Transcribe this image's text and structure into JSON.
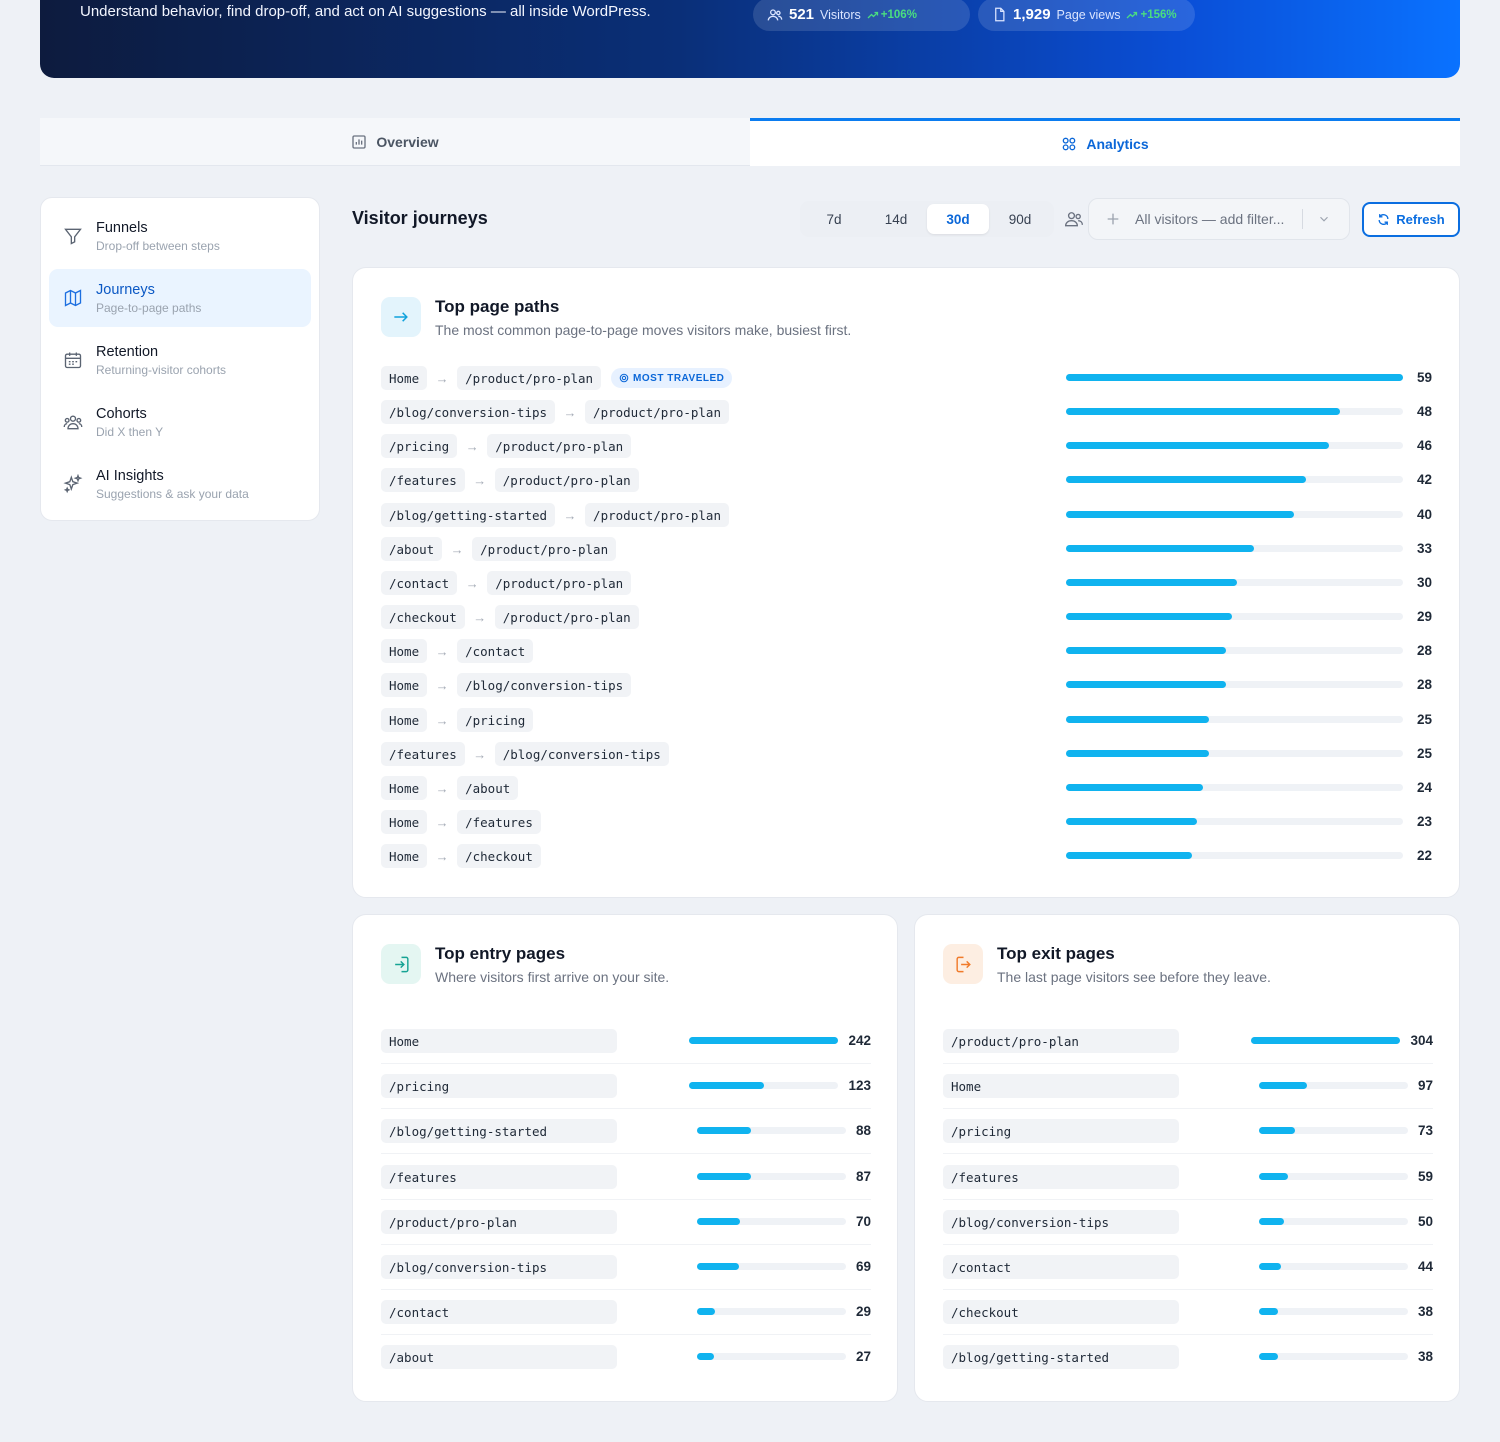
{
  "hero": {
    "subtitle": "Understand behavior, find drop-off, and act on AI suggestions — all inside WordPress.",
    "stats": [
      {
        "icon": "users-icon",
        "value": "521",
        "label": "Visitors",
        "delta": "+106%"
      },
      {
        "icon": "file-icon",
        "value": "1,929",
        "label": "Page views",
        "delta": "+156%"
      }
    ]
  },
  "tabs": [
    {
      "label": "Overview",
      "icon": "bar-chart-icon",
      "active": false
    },
    {
      "label": "Analytics",
      "icon": "grid-icon",
      "active": true
    }
  ],
  "sidebar": {
    "items": [
      {
        "title": "Funnels",
        "subtitle": "Drop-off between steps",
        "icon": "funnel-icon",
        "active": false
      },
      {
        "title": "Journeys",
        "subtitle": "Page-to-page paths",
        "icon": "map-icon",
        "active": true
      },
      {
        "title": "Retention",
        "subtitle": "Returning-visitor cohorts",
        "icon": "calendar-icon",
        "active": false
      },
      {
        "title": "Cohorts",
        "subtitle": "Did X then Y",
        "icon": "users-icon",
        "active": false
      },
      {
        "title": "AI Insights",
        "subtitle": "Suggestions & ask your data",
        "icon": "sparkles-icon",
        "active": false
      }
    ]
  },
  "header": {
    "title": "Visitor journeys",
    "ranges": [
      "7d",
      "14d",
      "30d",
      "90d"
    ],
    "active_range": "30d",
    "filter_placeholder": "All visitors — add filter...",
    "refresh_label": "Refresh"
  },
  "top_paths": {
    "title": "Top page paths",
    "description": "The most common page-to-page moves visitors make, busiest first.",
    "badge": "MOST TRAVELED",
    "max": 59,
    "rows": [
      {
        "from": "Home",
        "to": "/product/pro-plan",
        "count": 59
      },
      {
        "from": "/blog/conversion-tips",
        "to": "/product/pro-plan",
        "count": 48
      },
      {
        "from": "/pricing",
        "to": "/product/pro-plan",
        "count": 46
      },
      {
        "from": "/features",
        "to": "/product/pro-plan",
        "count": 42
      },
      {
        "from": "/blog/getting-started",
        "to": "/product/pro-plan",
        "count": 40
      },
      {
        "from": "/about",
        "to": "/product/pro-plan",
        "count": 33
      },
      {
        "from": "/contact",
        "to": "/product/pro-plan",
        "count": 30
      },
      {
        "from": "/checkout",
        "to": "/product/pro-plan",
        "count": 29
      },
      {
        "from": "Home",
        "to": "/contact",
        "count": 28
      },
      {
        "from": "Home",
        "to": "/blog/conversion-tips",
        "count": 28
      },
      {
        "from": "Home",
        "to": "/pricing",
        "count": 25
      },
      {
        "from": "/features",
        "to": "/blog/conversion-tips",
        "count": 25
      },
      {
        "from": "Home",
        "to": "/about",
        "count": 24
      },
      {
        "from": "Home",
        "to": "/features",
        "count": 23
      },
      {
        "from": "Home",
        "to": "/checkout",
        "count": 22
      }
    ]
  },
  "entry_pages": {
    "title": "Top entry pages",
    "description": "Where visitors first arrive on your site.",
    "max": 242,
    "rows": [
      {
        "page": "Home",
        "count": 242
      },
      {
        "page": "/pricing",
        "count": 123
      },
      {
        "page": "/blog/getting-started",
        "count": 88
      },
      {
        "page": "/features",
        "count": 87
      },
      {
        "page": "/product/pro-plan",
        "count": 70
      },
      {
        "page": "/blog/conversion-tips",
        "count": 69
      },
      {
        "page": "/contact",
        "count": 29
      },
      {
        "page": "/about",
        "count": 27
      }
    ]
  },
  "exit_pages": {
    "title": "Top exit pages",
    "description": "The last page visitors see before they leave.",
    "max": 304,
    "rows": [
      {
        "page": "/product/pro-plan",
        "count": 304
      },
      {
        "page": "Home",
        "count": 97
      },
      {
        "page": "/pricing",
        "count": 73
      },
      {
        "page": "/features",
        "count": 59
      },
      {
        "page": "/blog/conversion-tips",
        "count": 50
      },
      {
        "page": "/contact",
        "count": 44
      },
      {
        "page": "/checkout",
        "count": 38
      },
      {
        "page": "/blog/getting-started",
        "count": 38
      }
    ]
  },
  "colors": {
    "accent": "#0b67d8",
    "bar": "#10b3ef",
    "entry_icon": "#16a394",
    "exit_icon": "#f07a2a"
  }
}
